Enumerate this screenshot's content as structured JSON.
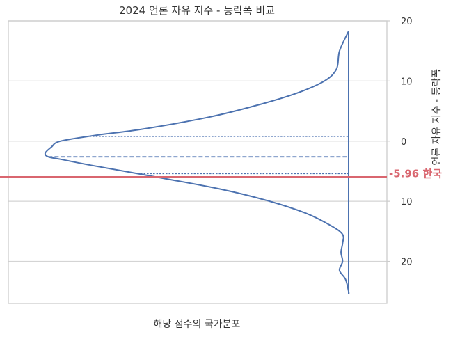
{
  "chart_data": {
    "type": "violin",
    "title": "2024 언론 자유 지수 - 등락폭 비교",
    "xlabel": "해당 점수의 국가분포",
    "ylabel": "언론 자유 지수 - 등락폭",
    "y_axis_side": "right",
    "y_inverted": true,
    "ylim": [
      -20,
      27
    ],
    "ytick_values": [
      -20,
      -10,
      0,
      10,
      20
    ],
    "ytick_labels": [
      "20",
      "10",
      "0",
      "10",
      "20"
    ],
    "grid": true,
    "density": {
      "y": [
        -18.3,
        -15.0,
        -12.0,
        -10.0,
        -8.0,
        -6.0,
        -4.0,
        -2.0,
        -1.0,
        0.0,
        1.0,
        2.0,
        2.6,
        3.0,
        4.0,
        6.0,
        8.0,
        10.0,
        12.0,
        14.0,
        15.5,
        17.0,
        18.5,
        20.0,
        21.5,
        23.0,
        25.0,
        25.5
      ],
      "relative_width": [
        0.0,
        0.03,
        0.04,
        0.08,
        0.17,
        0.3,
        0.46,
        0.68,
        0.83,
        0.95,
        0.98,
        1.0,
        0.99,
        0.95,
        0.85,
        0.63,
        0.42,
        0.26,
        0.14,
        0.06,
        0.02,
        0.02,
        0.025,
        0.02,
        0.03,
        0.01,
        0.0,
        0.0
      ]
    },
    "quartiles": {
      "q1": -0.8,
      "median": 2.6,
      "q3": 5.4
    },
    "reference": {
      "value": 5.96,
      "label": "-5.96 한국",
      "color": "#d9666f"
    },
    "series_color": "#4c72b0"
  }
}
